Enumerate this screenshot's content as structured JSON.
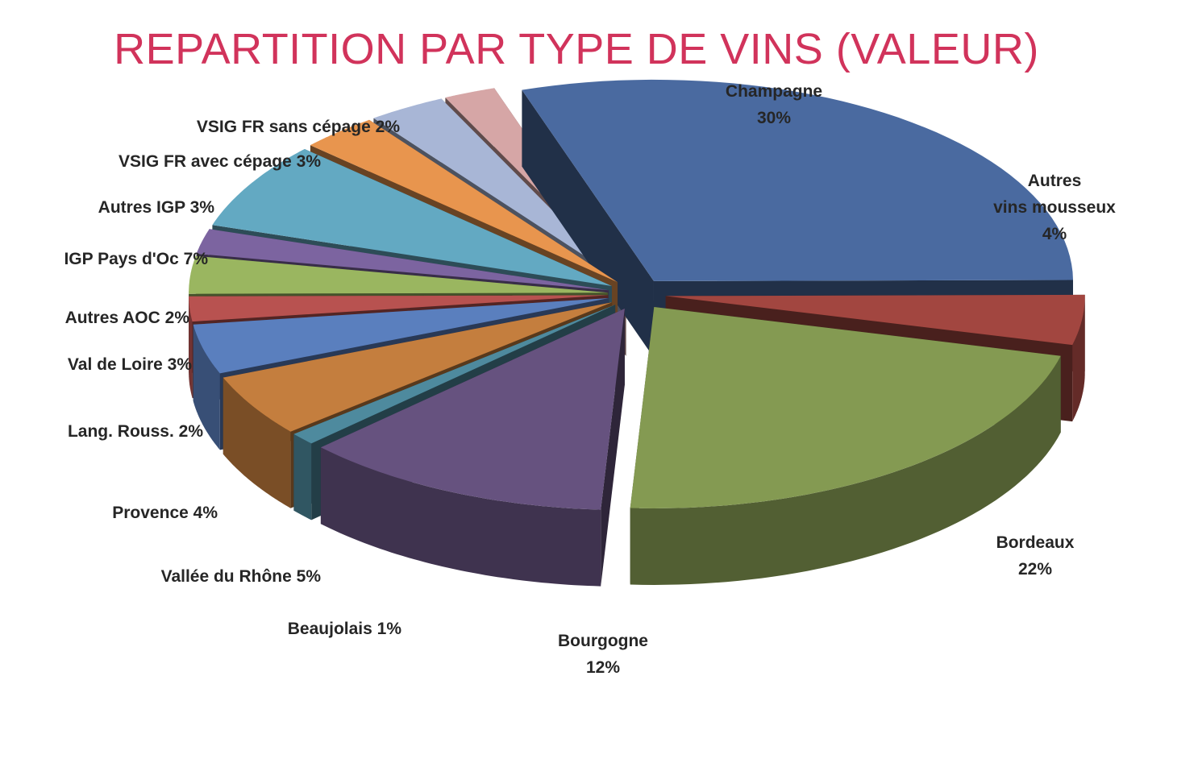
{
  "chart_data": {
    "type": "pie",
    "title": "REPARTITION PAR TYPE DE VINS (VALEUR)",
    "unit": "%",
    "slices": [
      {
        "label_lines": [
          "Champagne",
          "30%"
        ],
        "name": "Champagne",
        "value": 30,
        "color": "#4a6aa0"
      },
      {
        "label_lines": [
          "Autres",
          "vins mousseux",
          "4%"
        ],
        "name": "Autres vins mousseux",
        "value": 4,
        "color": "#a24640"
      },
      {
        "label_lines": [
          "Bordeaux",
          "22%"
        ],
        "name": "Bordeaux",
        "value": 22,
        "color": "#849a52"
      },
      {
        "label_lines": [
          "Bourgogne",
          "12%"
        ],
        "name": "Bourgogne",
        "value": 12,
        "color": "#66527f"
      },
      {
        "label_lines": [
          "Beaujolais 1%"
        ],
        "name": "Beaujolais",
        "value": 1,
        "color": "#4e8a9e"
      },
      {
        "label_lines": [
          "Vallée du Rhône 5%"
        ],
        "name": "Vallée du Rhône",
        "value": 5,
        "color": "#c47e3e"
      },
      {
        "label_lines": [
          "Provence 4%"
        ],
        "name": "Provence",
        "value": 4,
        "color": "#5a7fbe"
      },
      {
        "label_lines": [
          "Lang. Rouss. 2%"
        ],
        "name": "Lang. Rouss.",
        "value": 2,
        "color": "#b85250"
      },
      {
        "label_lines": [
          "Val de Loire 3%"
        ],
        "name": "Val de Loire",
        "value": 3,
        "color": "#9ab660"
      },
      {
        "label_lines": [
          "Autres AOC 2%"
        ],
        "name": "Autres AOC",
        "value": 2,
        "color": "#7c64a0"
      },
      {
        "label_lines": [
          "IGP Pays d'Oc 7%"
        ],
        "name": "IGP Pays d'Oc",
        "value": 7,
        "color": "#63a9c2"
      },
      {
        "label_lines": [
          "Autres IGP 3%"
        ],
        "name": "Autres IGP",
        "value": 3,
        "color": "#e8954e"
      },
      {
        "label_lines": [
          "VSIG FR avec cépage 3%"
        ],
        "name": "VSIG FR avec cépage",
        "value": 3,
        "color": "#a8b6d6"
      },
      {
        "label_lines": [
          "VSIG FR sans cépage 2%"
        ],
        "name": "VSIG FR sans cépage",
        "value": 2,
        "color": "#d6a6a6"
      }
    ]
  }
}
